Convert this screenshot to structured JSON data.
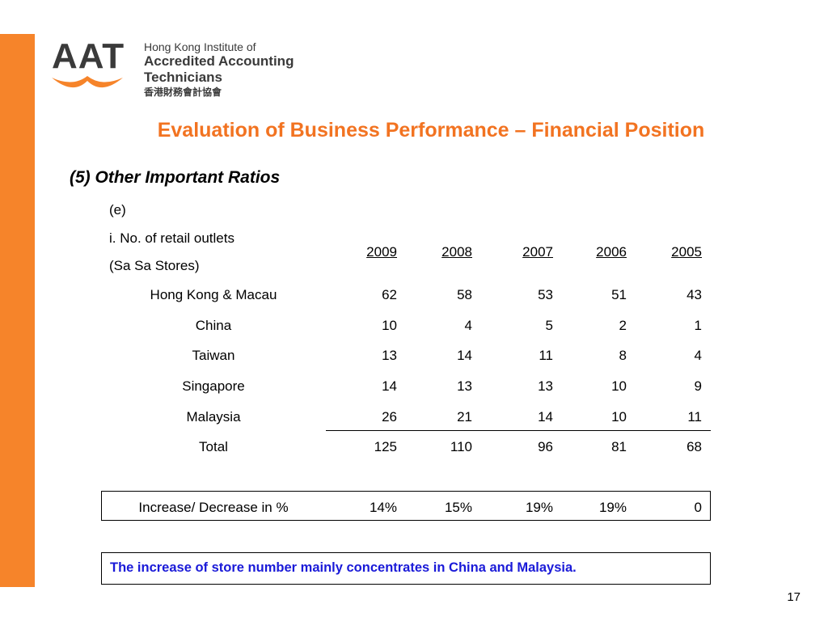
{
  "header": {
    "logo_acronym": "AAT",
    "logo_line1": "Hong Kong Institute of",
    "logo_line2": "Accredited Accounting Technicians",
    "logo_line3": "香港財務會計協會",
    "brand_color": "#f6842a"
  },
  "slide": {
    "title": "Evaluation of Business Performance – Financial Position",
    "section": "(5) Other Important Ratios",
    "item": "(e)",
    "measure_line1": "i. No. of retail outlets",
    "measure_line2": "(Sa Sa Stores)",
    "page_number": "17"
  },
  "table": {
    "years": [
      "2009",
      "2008",
      "2007",
      "2006",
      "2005"
    ],
    "rows": [
      {
        "region": "Hong Kong & Macau",
        "values": [
          "62",
          "58",
          "53",
          "51",
          "43"
        ]
      },
      {
        "region": "China",
        "values": [
          "10",
          "4",
          "5",
          "2",
          "1"
        ]
      },
      {
        "region": "Taiwan",
        "values": [
          "13",
          "14",
          "11",
          "8",
          "4"
        ]
      },
      {
        "region": "Singapore",
        "values": [
          "14",
          "13",
          "13",
          "10",
          "9"
        ]
      },
      {
        "region": "Malaysia",
        "values": [
          "26",
          "21",
          "14",
          "10",
          "11"
        ]
      },
      {
        "region": "Total",
        "values": [
          "125",
          "110",
          "96",
          "81",
          "68"
        ]
      }
    ],
    "change_label": "Increase/ Decrease in %",
    "change_values": [
      "14%",
      "15%",
      "19%",
      "19%",
      "0"
    ]
  },
  "note": "The increase of store number mainly concentrates in China and Malaysia.",
  "colors": {
    "title": "#f27321",
    "note": "#1a1ad8"
  }
}
